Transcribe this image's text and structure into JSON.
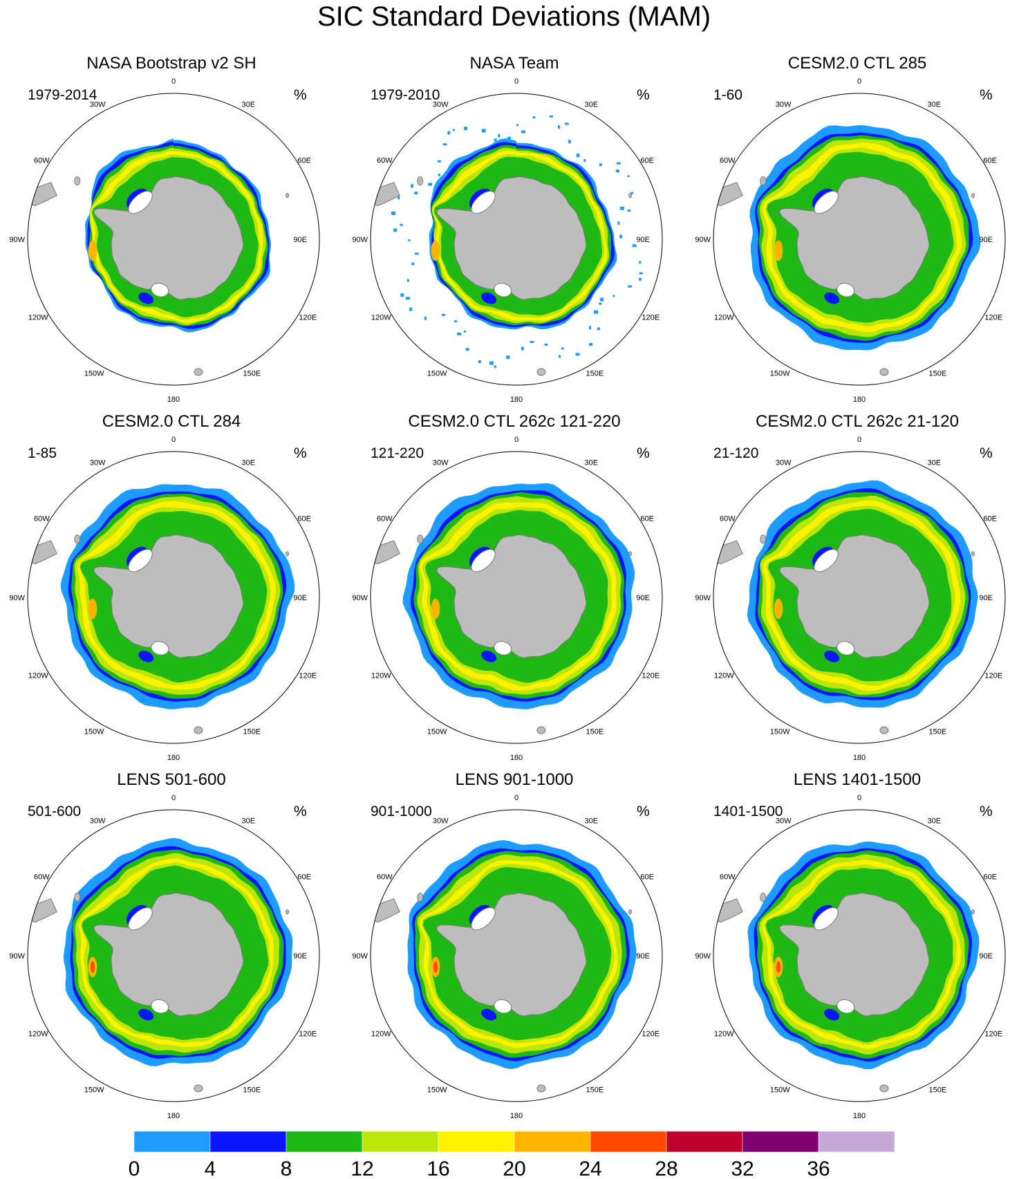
{
  "title": "SIC Standard Deviations (MAM)",
  "panels": [
    {
      "title": "NASA Bootstrap v2 SH",
      "period": "1979-2014",
      "unit": "%",
      "style": "obs"
    },
    {
      "title": "NASA Team",
      "period": "1979-2010",
      "unit": "%",
      "style": "obs2"
    },
    {
      "title": "CESM2.0 CTL 285",
      "period": "1-60",
      "unit": "%",
      "style": "model"
    },
    {
      "title": "CESM2.0 CTL 284",
      "period": "1-85",
      "unit": "%",
      "style": "model"
    },
    {
      "title": "CESM2.0 CTL 262c 121-220",
      "period": "121-220",
      "unit": "%",
      "style": "model"
    },
    {
      "title": "CESM2.0 CTL 262c 21-120",
      "period": "21-120",
      "unit": "%",
      "style": "model"
    },
    {
      "title": "LENS 501-600",
      "period": "501-600",
      "unit": "%",
      "style": "lens"
    },
    {
      "title": "LENS 901-1000",
      "period": "901-1000",
      "unit": "%",
      "style": "lens"
    },
    {
      "title": "LENS 1401-1500",
      "period": "1401-1500",
      "unit": "%",
      "style": "lens"
    }
  ],
  "longitude_labels": [
    "0",
    "30E",
    "60E",
    "90E",
    "120E",
    "150E",
    "180",
    "150W",
    "120W",
    "90W",
    "60W",
    "30W"
  ],
  "colorbar": {
    "levels": [
      "0",
      "4",
      "8",
      "12",
      "16",
      "20",
      "24",
      "28",
      "32",
      "36"
    ],
    "colors": [
      "#1e9bff",
      "#0a14ff",
      "#1fb814",
      "#bbe60a",
      "#fff200",
      "#ffb400",
      "#ff4a00",
      "#c0002c",
      "#80006e",
      "#c8a8d8"
    ]
  },
  "colors": {
    "land": "#bdbdbd",
    "land_edge": "#777777",
    "circle": "#000000"
  }
}
